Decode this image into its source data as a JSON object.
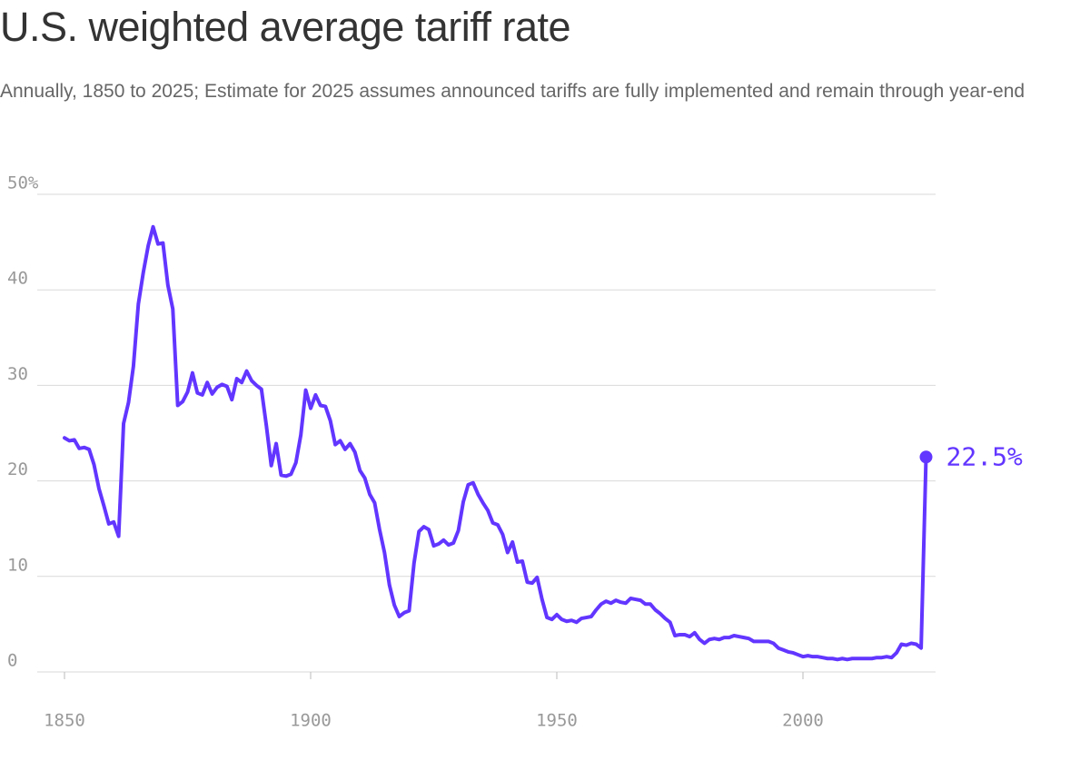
{
  "chart_data": {
    "type": "line",
    "title": "U.S. weighted average tariff rate",
    "subtitle": "Annually, 1850 to 2025; Estimate for 2025 assumes announced tariffs are fully implemented and remain through year-end",
    "xlim": [
      1850,
      2025
    ],
    "ylim": [
      0,
      50
    ],
    "xticks": [
      1850,
      1900,
      1950,
      2000
    ],
    "yticks": [
      0,
      10,
      20,
      30,
      40,
      {
        "value": 50,
        "label": "50%"
      }
    ],
    "grid": true,
    "x": [
      1850,
      1851,
      1852,
      1853,
      1854,
      1855,
      1856,
      1857,
      1858,
      1859,
      1860,
      1861,
      1862,
      1863,
      1864,
      1865,
      1866,
      1867,
      1868,
      1869,
      1870,
      1871,
      1872,
      1873,
      1874,
      1875,
      1876,
      1877,
      1878,
      1879,
      1880,
      1881,
      1882,
      1883,
      1884,
      1885,
      1886,
      1887,
      1888,
      1889,
      1890,
      1891,
      1892,
      1893,
      1894,
      1895,
      1896,
      1897,
      1898,
      1899,
      1900,
      1901,
      1902,
      1903,
      1904,
      1905,
      1906,
      1907,
      1908,
      1909,
      1910,
      1911,
      1912,
      1913,
      1914,
      1915,
      1916,
      1917,
      1918,
      1919,
      1920,
      1921,
      1922,
      1923,
      1924,
      1925,
      1926,
      1927,
      1928,
      1929,
      1930,
      1931,
      1932,
      1933,
      1934,
      1935,
      1936,
      1937,
      1938,
      1939,
      1940,
      1941,
      1942,
      1943,
      1944,
      1945,
      1946,
      1947,
      1948,
      1949,
      1950,
      1951,
      1952,
      1953,
      1954,
      1955,
      1956,
      1957,
      1958,
      1959,
      1960,
      1961,
      1962,
      1963,
      1964,
      1965,
      1966,
      1967,
      1968,
      1969,
      1970,
      1971,
      1972,
      1973,
      1974,
      1975,
      1976,
      1977,
      1978,
      1979,
      1980,
      1981,
      1982,
      1983,
      1984,
      1985,
      1986,
      1987,
      1988,
      1989,
      1990,
      1991,
      1992,
      1993,
      1994,
      1995,
      1996,
      1997,
      1998,
      1999,
      2000,
      2001,
      2002,
      2003,
      2004,
      2005,
      2006,
      2007,
      2008,
      2009,
      2010,
      2011,
      2012,
      2013,
      2014,
      2015,
      2016,
      2017,
      2018,
      2019,
      2020,
      2021,
      2022,
      2023,
      2024,
      2025
    ],
    "series": [
      {
        "name": "Weighted average tariff rate",
        "color": "#6236ff",
        "values": [
          24.5,
          24.2,
          24.3,
          23.4,
          23.5,
          23.3,
          21.7,
          19.2,
          17.4,
          15.5,
          15.7,
          14.2,
          26.0,
          28.2,
          32.0,
          38.5,
          41.8,
          44.6,
          46.6,
          44.8,
          44.9,
          40.5,
          38.0,
          27.9,
          28.3,
          29.3,
          31.3,
          29.2,
          29.0,
          30.3,
          29.1,
          29.8,
          30.1,
          29.9,
          28.5,
          30.7,
          30.3,
          31.5,
          30.5,
          30.0,
          29.6,
          25.8,
          21.6,
          23.9,
          20.6,
          20.5,
          20.7,
          21.9,
          24.8,
          29.5,
          27.6,
          29.0,
          27.9,
          27.8,
          26.3,
          23.8,
          24.2,
          23.3,
          23.9,
          23.0,
          21.1,
          20.3,
          18.6,
          17.7,
          14.9,
          12.5,
          9.1,
          7.0,
          5.8,
          6.2,
          6.4,
          11.4,
          14.7,
          15.2,
          14.9,
          13.2,
          13.4,
          13.8,
          13.3,
          13.5,
          14.8,
          17.8,
          19.6,
          19.8,
          18.6,
          17.7,
          16.9,
          15.6,
          15.4,
          14.4,
          12.5,
          13.6,
          11.5,
          11.6,
          9.4,
          9.3,
          9.9,
          7.6,
          5.7,
          5.5,
          6.0,
          5.5,
          5.3,
          5.4,
          5.2,
          5.6,
          5.7,
          5.8,
          6.5,
          7.1,
          7.4,
          7.2,
          7.5,
          7.3,
          7.2,
          7.7,
          7.6,
          7.5,
          7.1,
          7.1,
          6.5,
          6.1,
          5.6,
          5.2,
          3.8,
          3.9,
          3.9,
          3.7,
          4.1,
          3.4,
          3.0,
          3.4,
          3.5,
          3.4,
          3.6,
          3.6,
          3.8,
          3.7,
          3.6,
          3.5,
          3.2,
          3.2,
          3.2,
          3.2,
          3.0,
          2.5,
          2.3,
          2.1,
          2.0,
          1.8,
          1.6,
          1.7,
          1.6,
          1.6,
          1.5,
          1.4,
          1.4,
          1.3,
          1.4,
          1.3,
          1.4,
          1.4,
          1.4,
          1.4,
          1.4,
          1.5,
          1.5,
          1.6,
          1.5,
          2.0,
          2.9,
          2.8,
          3.0,
          2.9,
          2.5,
          22.5
        ]
      }
    ],
    "annotations": [
      {
        "x": 2025,
        "y": 22.5,
        "label": "22.5%"
      }
    ]
  }
}
